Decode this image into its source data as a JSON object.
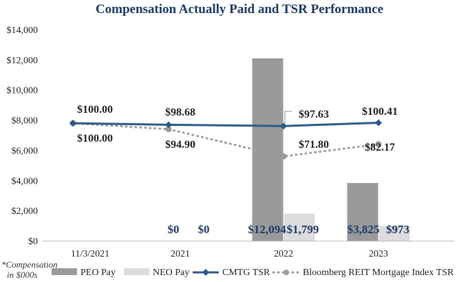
{
  "colors": {
    "title": "#1b3a66",
    "peo": "#9a9a9c",
    "neo": "#dcdcde",
    "cmtg": "#2b5a8a",
    "bloomberg": "#9a9a9c",
    "text": "#222222",
    "value_label": "#1b3a66"
  },
  "chart_data": {
    "type": "bar+line",
    "title": "Compensation Actually Paid and TSR Performance",
    "footnote_line1": "*Compensation",
    "footnote_line2": "in $000s",
    "categories": [
      "11/3/2021",
      "2021",
      "2022",
      "2023"
    ],
    "y_ticks": [
      "$14,000",
      "$12,000",
      "$10,000",
      "$8,000",
      "$6,000",
      "$4,000",
      "$2,000",
      "$0"
    ],
    "ylim": [
      0,
      14000
    ],
    "bar_series": [
      {
        "name": "PEO Pay",
        "values": [
          null,
          0,
          12094,
          3825
        ],
        "labels": [
          "",
          "$0",
          "$12,094",
          "$3,825"
        ]
      },
      {
        "name": "NEO Pay",
        "values": [
          null,
          0,
          1799,
          973
        ],
        "labels": [
          "",
          "$0",
          "$1,799",
          "$973"
        ]
      }
    ],
    "line_series": [
      {
        "name": "CMTG TSR",
        "values": [
          100.0,
          98.68,
          97.63,
          100.41
        ],
        "labels": [
          "$100.00",
          "$98.68",
          "$97.63",
          "$100.41"
        ]
      },
      {
        "name": "Bloomberg REIT Mortgage Index TSR",
        "values": [
          100.0,
          94.9,
          71.8,
          82.17
        ],
        "labels": [
          "$100.00",
          "$94.90",
          "$71.80",
          "$82.17"
        ]
      }
    ],
    "legend": [
      "PEO Pay",
      "NEO Pay",
      "CMTG TSR",
      "Bloomberg REIT Mortgage Index TSR"
    ]
  }
}
